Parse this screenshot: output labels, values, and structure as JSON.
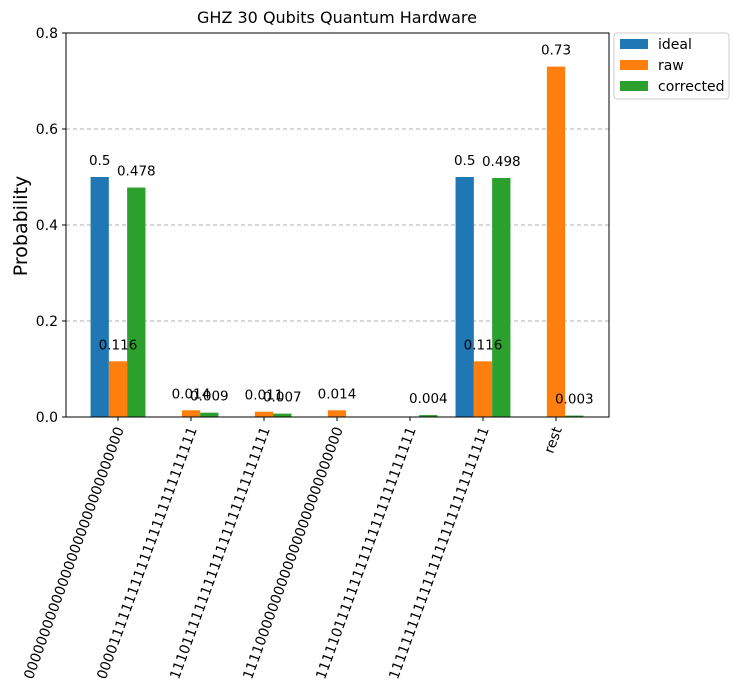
{
  "chart_data": {
    "type": "bar",
    "title": "GHZ 30 Qubits Quantum Hardware",
    "xlabel": "",
    "ylabel": "Probability",
    "ylim": [
      0,
      0.8
    ],
    "yticks": [
      "0.0",
      "0.2",
      "0.4",
      "0.6",
      "0.8"
    ],
    "grid": "horizontal dashed",
    "legend_position": "outside top-right",
    "categories": [
      "000000000000000000000000000000",
      "000011111111111111111111111111",
      "111011111111111111111111111111",
      "111100000000000000000000000000",
      "111110111111111111111111111111",
      "111111111111111111111111111111",
      "rest"
    ],
    "series": [
      {
        "name": "ideal",
        "color": "#1f77b4",
        "values": [
          0.5,
          null,
          null,
          null,
          null,
          0.5,
          null
        ],
        "labels": [
          "0.5",
          "",
          "",
          "",
          "",
          "0.5",
          ""
        ]
      },
      {
        "name": "raw",
        "color": "#ff7f0e",
        "values": [
          0.116,
          0.014,
          0.011,
          0.014,
          null,
          0.116,
          0.73
        ],
        "labels": [
          "0.116",
          "0.014",
          "0.011",
          "0.014",
          "",
          "0.116",
          "0.73"
        ]
      },
      {
        "name": "corrected",
        "color": "#2ca02c",
        "values": [
          0.478,
          0.009,
          0.007,
          null,
          0.004,
          0.498,
          0.003
        ],
        "labels": [
          "0.478",
          "0.009",
          "0.007",
          "",
          "0.004",
          "0.498",
          "0.003"
        ]
      }
    ]
  }
}
